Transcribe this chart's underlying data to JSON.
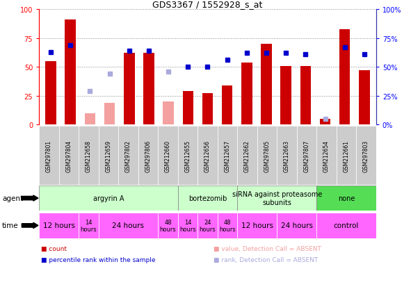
{
  "title": "GDS3367 / 1552928_s_at",
  "samples": [
    "GSM297801",
    "GSM297804",
    "GSM212658",
    "GSM212659",
    "GSM297802",
    "GSM297806",
    "GSM212660",
    "GSM212655",
    "GSM212656",
    "GSM212657",
    "GSM212662",
    "GSM297805",
    "GSM212663",
    "GSM297807",
    "GSM212654",
    "GSM212661",
    "GSM297803"
  ],
  "count_values": [
    55,
    91,
    10,
    19,
    62,
    62,
    20,
    29,
    27,
    34,
    54,
    70,
    51,
    51,
    5,
    83,
    47
  ],
  "count_absent": [
    false,
    false,
    true,
    true,
    false,
    false,
    true,
    false,
    false,
    false,
    false,
    false,
    false,
    false,
    false,
    false,
    false
  ],
  "rank_values": [
    63,
    69,
    29,
    44,
    64,
    64,
    46,
    50,
    50,
    56,
    62,
    62,
    62,
    61,
    5,
    67,
    61
  ],
  "rank_absent": [
    false,
    false,
    true,
    true,
    false,
    false,
    true,
    false,
    false,
    false,
    false,
    false,
    false,
    false,
    true,
    false,
    false
  ],
  "bar_color_present": "#cc0000",
  "bar_color_absent": "#f4a0a0",
  "rank_color_present": "#0000cc",
  "rank_color_absent": "#aaaadd",
  "agent_groups": [
    {
      "label": "argyrin A",
      "start": 0,
      "end": 7,
      "color": "#ccffcc"
    },
    {
      "label": "bortezomib",
      "start": 7,
      "end": 10,
      "color": "#ccffcc"
    },
    {
      "label": "siRNA against proteasome\nsubunits",
      "start": 10,
      "end": 14,
      "color": "#ccffcc"
    },
    {
      "label": "none",
      "start": 14,
      "end": 17,
      "color": "#55dd55"
    }
  ],
  "time_groups": [
    {
      "label": "12 hours",
      "start": 0,
      "end": 2,
      "fontsize": 7.5
    },
    {
      "label": "14\nhours",
      "start": 2,
      "end": 3,
      "fontsize": 6
    },
    {
      "label": "24 hours",
      "start": 3,
      "end": 6,
      "fontsize": 7.5
    },
    {
      "label": "48\nhours",
      "start": 6,
      "end": 7,
      "fontsize": 6
    },
    {
      "label": "14\nhours",
      "start": 7,
      "end": 8,
      "fontsize": 6
    },
    {
      "label": "24\nhours",
      "start": 8,
      "end": 9,
      "fontsize": 6
    },
    {
      "label": "48\nhours",
      "start": 9,
      "end": 10,
      "fontsize": 6
    },
    {
      "label": "12 hours",
      "start": 10,
      "end": 12,
      "fontsize": 7.5
    },
    {
      "label": "24 hours",
      "start": 12,
      "end": 14,
      "fontsize": 7.5
    },
    {
      "label": "control",
      "start": 14,
      "end": 17,
      "fontsize": 7.5
    }
  ],
  "time_color": "#ff66ff",
  "ylim": [
    0,
    100
  ],
  "background_color": "#ffffff",
  "grid_color": "#888888",
  "tick_positions": [
    0,
    25,
    50,
    75,
    100
  ],
  "xlabel_color": "#555555",
  "sample_bg_color": "#cccccc",
  "legend_items": [
    {
      "label": "count",
      "color": "#cc0000",
      "marker": "s"
    },
    {
      "label": "percentile rank within the sample",
      "color": "#0000cc",
      "marker": "s"
    },
    {
      "label": "value, Detection Call = ABSENT",
      "color": "#f4a0a0",
      "marker": "s"
    },
    {
      "label": "rank, Detection Call = ABSENT",
      "color": "#aaaadd",
      "marker": "s"
    }
  ]
}
